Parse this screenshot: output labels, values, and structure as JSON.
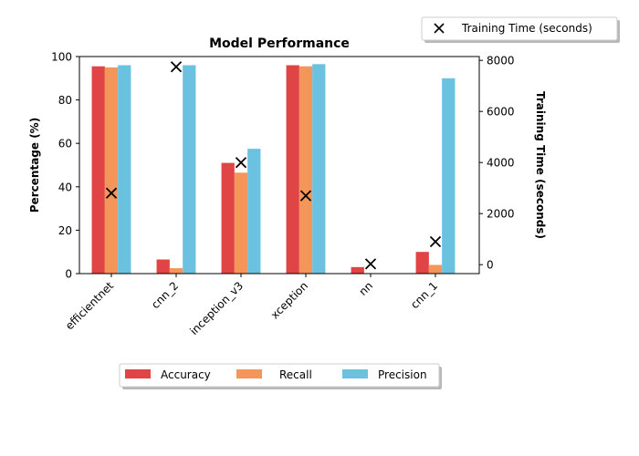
{
  "chart_data": {
    "type": "bar",
    "title": "Model Performance",
    "categories": [
      "efficientnet",
      "cnn_2",
      "inception_v3",
      "xception",
      "nn",
      "cnn_1"
    ],
    "ylabel_left": "Percentage (%)",
    "ylabel_right": "Training Time (seconds)",
    "ylim_left": [
      0,
      100
    ],
    "ylim_right": [
      -350,
      8150
    ],
    "yticks_left": [
      0,
      20,
      40,
      60,
      80,
      100
    ],
    "yticks_right": [
      0,
      2000,
      4000,
      6000,
      8000
    ],
    "series": [
      {
        "name": "Accuracy",
        "color": "#e04444",
        "values": [
          95.5,
          6.5,
          51,
          96,
          3,
          10
        ]
      },
      {
        "name": "Recall",
        "color": "#f4955a",
        "values": [
          95,
          2.5,
          46.5,
          95.5,
          0,
          4
        ]
      },
      {
        "name": "Precision",
        "color": "#6bc2e0",
        "values": [
          96,
          96,
          57.5,
          96.5,
          0,
          90
        ]
      }
    ],
    "line_series": {
      "name": "Training Time (seconds)",
      "marker": "x",
      "color": "#000000",
      "values": [
        2800,
        7750,
        4000,
        2700,
        30,
        900
      ]
    },
    "grid": false,
    "legend_bars_position": "bottom-center",
    "legend_time_position": "top-right"
  }
}
